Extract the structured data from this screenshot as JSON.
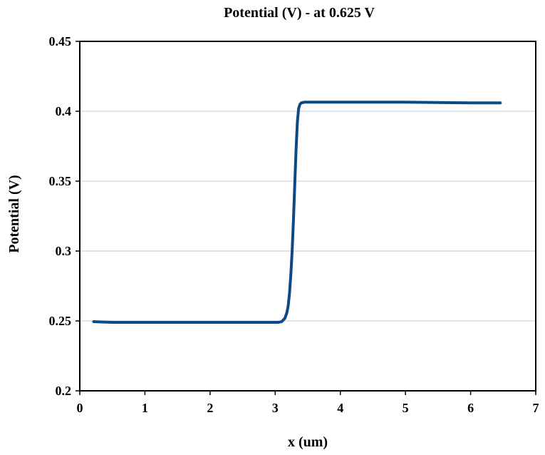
{
  "chart_data": {
    "type": "line",
    "title": "Potential (V) - at 0.625 V",
    "xlabel": "x (um)",
    "ylabel": "Potential (V)",
    "xlim": [
      0,
      7
    ],
    "ylim": [
      0.2,
      0.45
    ],
    "xticks": [
      "0",
      "1",
      "2",
      "3",
      "4",
      "5",
      "6",
      "7"
    ],
    "yticks": [
      "0.2",
      "0.25",
      "0.3",
      "0.35",
      "0.4",
      "0.45"
    ],
    "grid": "horizontal",
    "colors": {
      "series": "#0b4a86",
      "grid": "#c8c8c8",
      "axis": "#000000"
    },
    "series": [
      {
        "x": [
          0.2,
          0.5,
          1.0,
          2.0,
          2.8,
          3.0,
          3.05,
          3.1,
          3.15,
          3.18,
          3.2,
          3.22,
          3.24,
          3.26,
          3.28,
          3.3,
          3.32,
          3.34,
          3.36,
          3.38,
          3.4,
          3.45,
          3.5,
          4.0,
          5.0,
          6.0,
          6.47
        ],
        "y": [
          0.2495,
          0.249,
          0.249,
          0.249,
          0.249,
          0.249,
          0.249,
          0.2495,
          0.252,
          0.256,
          0.261,
          0.27,
          0.283,
          0.3,
          0.322,
          0.347,
          0.372,
          0.392,
          0.402,
          0.405,
          0.406,
          0.4065,
          0.4065,
          0.4065,
          0.4065,
          0.406,
          0.406
        ]
      }
    ]
  }
}
